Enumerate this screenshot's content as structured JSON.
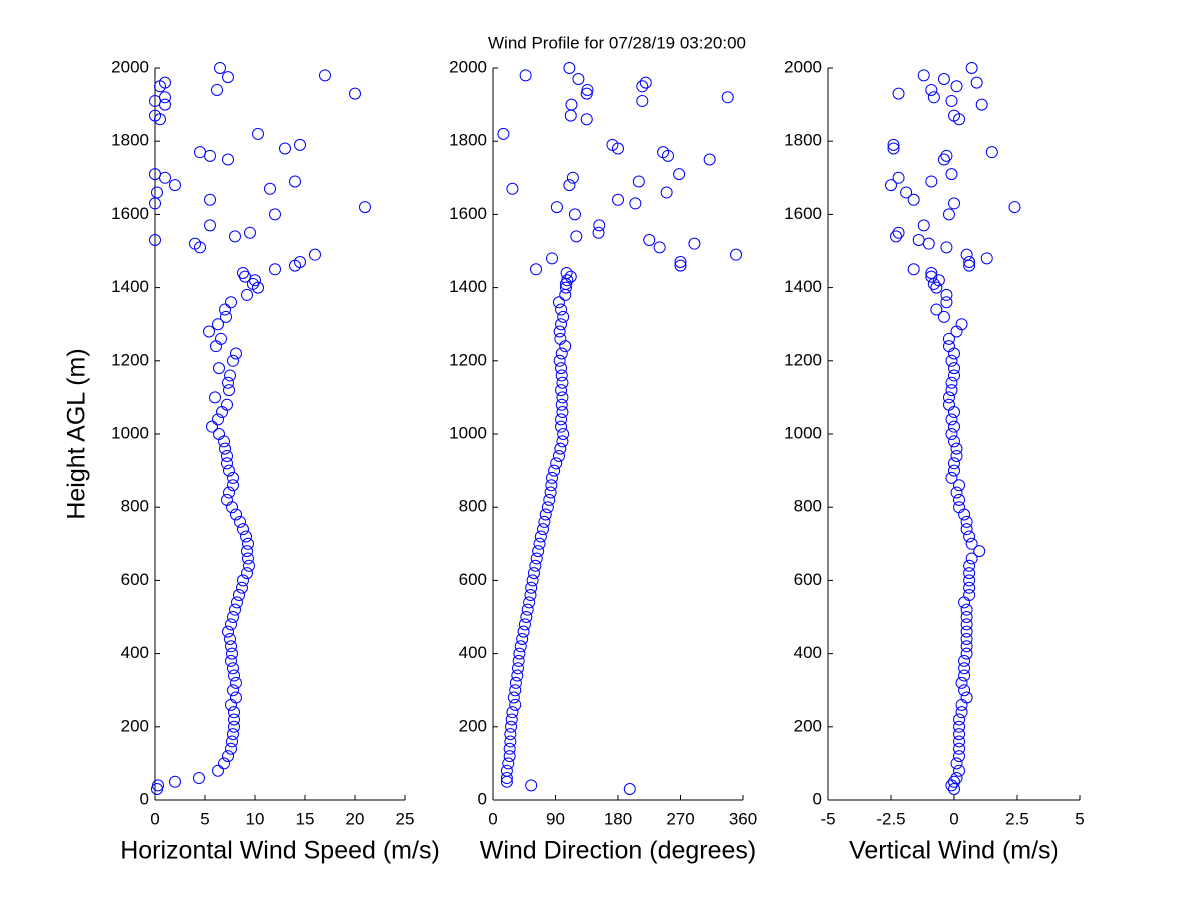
{
  "chart_data": [
    {
      "type": "scatter",
      "title": "Wind Profile for  07/28/19 03:20:00",
      "ylabel": "Height AGL (m)",
      "xlabel": "Horizontal Wind Speed (m/s)",
      "color": "#0000ff",
      "xlim": [
        0,
        25
      ],
      "xticks": [
        0,
        5,
        10,
        15,
        20,
        25
      ],
      "ylim": [
        0,
        2000
      ],
      "yticks": [
        0,
        200,
        400,
        600,
        800,
        1000,
        1200,
        1400,
        1600,
        1800,
        2000
      ],
      "x": [
        0.2,
        0.3,
        2,
        4.4,
        6.3,
        6.9,
        7.3,
        7.6,
        7.7,
        7.8,
        7.9,
        7.9,
        7.9,
        7.6,
        8.1,
        7.8,
        8.1,
        7.9,
        7.8,
        7.6,
        7.7,
        7.6,
        7.5,
        7.3,
        7.6,
        7.8,
        8,
        8.2,
        8.4,
        8.7,
        8.8,
        9.2,
        9.4,
        9.3,
        9.2,
        9.3,
        9.1,
        8.8,
        8.5,
        8.1,
        7.7,
        7.2,
        7.4,
        7.8,
        7.8,
        7.4,
        7.2,
        7.2,
        7.0,
        6.9,
        6.4,
        5.7,
        6.3,
        6.7,
        7.2,
        6.0,
        7.4,
        7.3,
        7.5,
        6.4,
        7.8,
        8.1,
        6.1,
        6.6,
        5.4,
        6.3,
        7.1,
        7.0,
        7.6,
        9.2,
        10.3,
        9.8,
        10,
        9,
        8.8,
        12,
        14,
        14.5,
        16,
        4.5,
        4,
        0,
        8,
        9.5,
        5.5,
        12,
        21,
        0,
        5.5,
        0.2,
        11.5,
        2,
        14,
        1,
        0,
        7.3,
        5.5,
        4.5,
        13,
        14.5,
        10.3,
        0.5,
        0,
        1,
        0,
        1,
        20,
        6.2,
        0.5,
        1,
        7.3,
        17,
        6.5
      ],
      "y": [
        30,
        40,
        50,
        60,
        80,
        100,
        120,
        140,
        160,
        180,
        200,
        220,
        240,
        260,
        280,
        300,
        320,
        340,
        360,
        380,
        400,
        420,
        440,
        460,
        480,
        500,
        520,
        540,
        560,
        580,
        600,
        620,
        640,
        660,
        680,
        700,
        720,
        740,
        760,
        780,
        800,
        820,
        840,
        860,
        880,
        900,
        920,
        940,
        960,
        980,
        1000,
        1020,
        1040,
        1060,
        1080,
        1100,
        1120,
        1140,
        1160,
        1180,
        1200,
        1220,
        1240,
        1260,
        1280,
        1300,
        1320,
        1340,
        1360,
        1380,
        1400,
        1410,
        1420,
        1430,
        1440,
        1450,
        1460,
        1470,
        1490,
        1510,
        1520,
        1530,
        1540,
        1550,
        1570,
        1600,
        1620,
        1630,
        1640,
        1660,
        1670,
        1680,
        1690,
        1700,
        1710,
        1750,
        1760,
        1770,
        1780,
        1790,
        1820,
        1860,
        1870,
        1900,
        1910,
        1920,
        1930,
        1940,
        1950,
        1960,
        1975,
        1980,
        2000
      ]
    },
    {
      "type": "scatter",
      "xlabel": "Wind Direction (degrees)",
      "color": "#0000ff",
      "xlim": [
        0,
        360
      ],
      "xticks": [
        0,
        90,
        180,
        270,
        360
      ],
      "ylim": [
        0,
        2000
      ],
      "yticks": [
        0,
        200,
        400,
        600,
        800,
        1000,
        1200,
        1400,
        1600,
        1800,
        2000
      ],
      "x": [
        197,
        55,
        20,
        20,
        20,
        22,
        24,
        24,
        25,
        25,
        26,
        27,
        28,
        32,
        30,
        32,
        33,
        35,
        36,
        37,
        38,
        40,
        42,
        44,
        46,
        48,
        50,
        52,
        54,
        55,
        57,
        59,
        61,
        63,
        65,
        67,
        69,
        72,
        74,
        76,
        79,
        81,
        83,
        84,
        85,
        88,
        91,
        95,
        97,
        100,
        101,
        98,
        98,
        100,
        99,
        100,
        98,
        100,
        99,
        98,
        96,
        99,
        104,
        97,
        96,
        98,
        101,
        98,
        95,
        104,
        105,
        105,
        107,
        112,
        106,
        62,
        270,
        270,
        85,
        350,
        240,
        290,
        225,
        120,
        152,
        153,
        118,
        92,
        205,
        180,
        250,
        28,
        110,
        210,
        115,
        268,
        312,
        252,
        245,
        180,
        172,
        15,
        135,
        112,
        113,
        215,
        338,
        135,
        136,
        215,
        220,
        123,
        47,
        110
      ],
      "y": [
        30,
        40,
        50,
        60,
        80,
        100,
        120,
        140,
        160,
        180,
        200,
        220,
        240,
        260,
        280,
        300,
        320,
        340,
        360,
        380,
        400,
        420,
        440,
        460,
        480,
        500,
        520,
        540,
        560,
        580,
        600,
        620,
        640,
        660,
        680,
        700,
        720,
        740,
        760,
        780,
        800,
        820,
        840,
        860,
        880,
        900,
        920,
        940,
        960,
        980,
        1000,
        1020,
        1040,
        1060,
        1080,
        1100,
        1120,
        1140,
        1160,
        1180,
        1200,
        1220,
        1240,
        1260,
        1280,
        1300,
        1320,
        1340,
        1360,
        1380,
        1400,
        1410,
        1420,
        1430,
        1440,
        1450,
        1460,
        1470,
        1480,
        1490,
        1510,
        1520,
        1530,
        1540,
        1550,
        1570,
        1600,
        1620,
        1630,
        1640,
        1660,
        1670,
        1680,
        1690,
        1700,
        1710,
        1750,
        1760,
        1770,
        1780,
        1790,
        1820,
        1860,
        1870,
        1900,
        1910,
        1920,
        1930,
        1940,
        1950,
        1960,
        1970,
        1980,
        2000
      ]
    },
    {
      "type": "scatter",
      "xlabel": "Vertical Wind (m/s)",
      "color": "#0000ff",
      "xlim": [
        -5,
        5
      ],
      "xticks": [
        -5,
        -2.5,
        0,
        2.5,
        5
      ],
      "ylim": [
        0,
        2000
      ],
      "yticks": [
        0,
        200,
        400,
        600,
        800,
        1000,
        1200,
        1400,
        1600,
        1800,
        2000
      ],
      "x": [
        0,
        -0.1,
        0,
        0.1,
        0.2,
        0.1,
        0.2,
        0.2,
        0.2,
        0.2,
        0.2,
        0.2,
        0.3,
        0.3,
        0.5,
        0.4,
        0.3,
        0.4,
        0.4,
        0.4,
        0.5,
        0.5,
        0.5,
        0.5,
        0.5,
        0.5,
        0.5,
        0.4,
        0.6,
        0.6,
        0.6,
        0.6,
        0.6,
        0.7,
        1.0,
        0.7,
        0.6,
        0.5,
        0.5,
        0.4,
        0.2,
        0.2,
        0.1,
        0.2,
        -0.1,
        0,
        0,
        0.1,
        0.1,
        0,
        -0.1,
        0,
        -0.1,
        0,
        -0.2,
        -0.2,
        -0.1,
        -0.1,
        0,
        0,
        -0.1,
        0,
        -0.2,
        -0.2,
        0.1,
        0.3,
        -0.4,
        -0.7,
        -0.3,
        -0.3,
        -0.7,
        -0.8,
        -0.6,
        -0.9,
        -0.9,
        -1.6,
        0.6,
        0.6,
        1.3,
        0.5,
        -0.3,
        -1.0,
        -1.4,
        -2.3,
        -2.2,
        -1.2,
        -0.2,
        2.4,
        0,
        -1.6,
        -1.9,
        -2.5,
        -0.9,
        -2.2,
        -0.1,
        -0.4,
        -0.3,
        1.5,
        -2.4,
        -2.4,
        0.2,
        0,
        1.1,
        -0.1,
        -0.8,
        -2.2,
        -0.9,
        0.1,
        0.9,
        -0.4,
        -1.2,
        0.7
      ],
      "y": [
        30,
        40,
        50,
        60,
        80,
        100,
        120,
        140,
        160,
        180,
        200,
        220,
        240,
        260,
        280,
        300,
        320,
        340,
        360,
        380,
        400,
        420,
        440,
        460,
        480,
        500,
        520,
        540,
        560,
        580,
        600,
        620,
        640,
        660,
        680,
        700,
        720,
        740,
        760,
        780,
        800,
        820,
        840,
        860,
        880,
        900,
        920,
        940,
        960,
        980,
        1000,
        1020,
        1040,
        1060,
        1080,
        1100,
        1120,
        1140,
        1160,
        1180,
        1200,
        1220,
        1240,
        1260,
        1280,
        1300,
        1320,
        1340,
        1360,
        1380,
        1400,
        1410,
        1420,
        1430,
        1440,
        1450,
        1460,
        1470,
        1480,
        1490,
        1510,
        1520,
        1530,
        1540,
        1550,
        1570,
        1600,
        1620,
        1630,
        1640,
        1660,
        1680,
        1690,
        1700,
        1710,
        1750,
        1760,
        1770,
        1780,
        1790,
        1860,
        1870,
        1900,
        1910,
        1920,
        1930,
        1940,
        1950,
        1960,
        1970,
        1980,
        2000
      ]
    }
  ]
}
